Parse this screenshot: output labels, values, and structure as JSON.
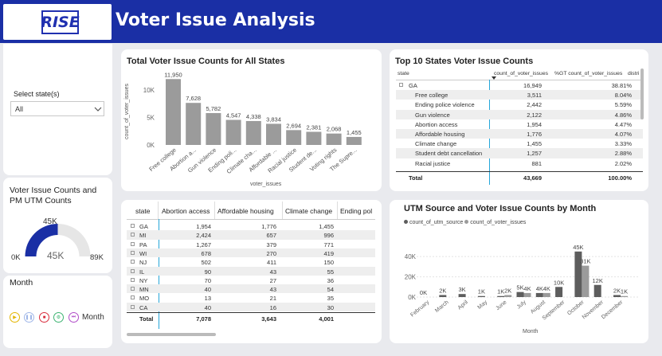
{
  "header": {
    "title": "Voter Issue Analysis",
    "logo_text": "RISE"
  },
  "slicer": {
    "label": "Select state(s)",
    "value": "All"
  },
  "gauge": {
    "title": "Voter Issue Counts and PM UTM Counts",
    "min": "0K",
    "max": "89K",
    "value": "45K",
    "target": "45K",
    "fraction": 0.5
  },
  "month": {
    "title": "Month",
    "play_label": "Month"
  },
  "bar_chart": {
    "title": "Total Voter Issue Counts for All States",
    "ylabel": "count_of_voter_issues",
    "xlabel": "voter_issues",
    "yticks": [
      "0K",
      "5K",
      "10K"
    ]
  },
  "top10": {
    "title": "Top 10 States Voter Issue Counts",
    "columns": [
      "state",
      "count_of_voter_issues",
      "%GT count_of_voter_issues",
      "distri"
    ],
    "rows": [
      {
        "label": "GA",
        "count": "16,949",
        "pct": "38.81%",
        "group": true
      },
      {
        "label": "Free college",
        "count": "3,511",
        "pct": "8.04%"
      },
      {
        "label": "Ending police violence",
        "count": "2,442",
        "pct": "5.59%"
      },
      {
        "label": "Gun violence",
        "count": "2,122",
        "pct": "4.86%"
      },
      {
        "label": "Abortion access",
        "count": "1,954",
        "pct": "4.47%"
      },
      {
        "label": "Affordable housing",
        "count": "1,776",
        "pct": "4.07%"
      },
      {
        "label": "Climate change",
        "count": "1,455",
        "pct": "3.33%"
      },
      {
        "label": "Student debt cancellation",
        "count": "1,257",
        "pct": "2.88%"
      },
      {
        "label": "Racial justice",
        "count": "881",
        "pct": "2.02%"
      }
    ],
    "total": {
      "label": "Total",
      "count": "43,669",
      "pct": "100.00%"
    }
  },
  "matrix": {
    "columns": [
      "state",
      "Abortion access",
      "Affordable housing",
      "Climate change",
      "Ending pol"
    ],
    "rows": [
      [
        "GA",
        "1,954",
        "1,776",
        "1,455"
      ],
      [
        "MI",
        "2,424",
        "657",
        "996"
      ],
      [
        "PA",
        "1,267",
        "379",
        "771"
      ],
      [
        "WI",
        "678",
        "270",
        "419"
      ],
      [
        "NJ",
        "502",
        "411",
        "150"
      ],
      [
        "IL",
        "90",
        "43",
        "55"
      ],
      [
        "NY",
        "70",
        "27",
        "36"
      ],
      [
        "MN",
        "40",
        "43",
        "54"
      ],
      [
        "MO",
        "13",
        "21",
        "35"
      ],
      [
        "CA",
        "40",
        "16",
        "30"
      ]
    ],
    "total": [
      "Total",
      "7,078",
      "3,643",
      "4,001"
    ]
  },
  "utm_chart": {
    "title": "UTM Source and Voter Issue Counts by Month",
    "legend": [
      "count_of_utm_source",
      "count_of_voter_issues"
    ],
    "xlabel": "Month",
    "yticks": [
      "0K",
      "20K",
      "40K"
    ]
  },
  "chart_data": [
    {
      "type": "bar",
      "title": "Total Voter Issue Counts for All States",
      "xlabel": "voter_issues",
      "ylabel": "count_of_voter_issues",
      "ylim": [
        0,
        13000
      ],
      "categories": [
        "Free college",
        "Abortion a...",
        "Gun violence",
        "Ending poli...",
        "Climate cha...",
        "Affordable ...",
        "Racial justice",
        "Student de...",
        "Voting rights",
        "The Supre..."
      ],
      "values": [
        11950,
        7628,
        5782,
        4547,
        4338,
        3834,
        2694,
        2381,
        2068,
        1455
      ],
      "labels": [
        "11,950",
        "7,628",
        "5,782",
        "4,547",
        "4,338",
        "3,834",
        "2,694",
        "2,381",
        "2,068",
        "1,455"
      ],
      "color": "#9b9b9b"
    },
    {
      "type": "bar",
      "title": "UTM Source and Voter Issue Counts by Month",
      "xlabel": "Month",
      "ylim": [
        0,
        48000
      ],
      "categories": [
        "February",
        "March",
        "April",
        "May",
        "June",
        "July",
        "August",
        "September",
        "October",
        "November",
        "December"
      ],
      "series": [
        {
          "name": "count_of_utm_source",
          "values": [
            0,
            2000,
            3000,
            1000,
            1000,
            5000,
            4000,
            10000,
            45000,
            12000,
            2000
          ],
          "labels": [
            "0K",
            "2K",
            "3K",
            "1K",
            "1K",
            "5K",
            "4K",
            "10K",
            "45K",
            "12K",
            "2K"
          ],
          "color": "#5d5d5d"
        },
        {
          "name": "count_of_voter_issues",
          "values": [
            0,
            0,
            0,
            0,
            2000,
            4000,
            4000,
            0,
            31000,
            0,
            1000
          ],
          "labels": [
            "",
            "",
            "",
            "",
            "2K",
            "4K",
            "4K",
            "",
            "31K",
            "",
            "1K"
          ],
          "color": "#9b9b9b"
        }
      ]
    }
  ]
}
